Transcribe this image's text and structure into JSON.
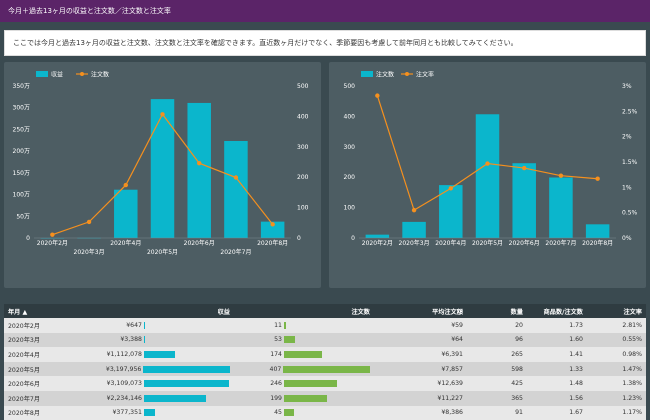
{
  "header": {
    "title": "今月＋過去13ヶ月の収益と注文数／注文数と注文率"
  },
  "intro": {
    "text": "ここでは今月と過去13ヶ月の収益と注文数、注文数と注文率を確認できます。直近数ヶ月だけでなく、季節要因も考慮して前年同月とも比較してみてください。"
  },
  "colors": {
    "revenue": "#0bb6cc",
    "line": "#f5901e",
    "orders_bar": "#7ab648"
  },
  "chart_data": [
    {
      "type": "bar",
      "legend": [
        "収益",
        "注文数"
      ],
      "categories": [
        "2020年2月",
        "2020年3月",
        "2020年4月",
        "2020年5月",
        "2020年6月",
        "2020年7月",
        "2020年8月"
      ],
      "series": [
        {
          "name": "収益",
          "values": [
            0.06,
            0.34,
            111.2,
            319.8,
            311.0,
            223.4,
            37.7
          ],
          "axis": "left"
        },
        {
          "name": "注文数",
          "values": [
            11,
            53,
            174,
            407,
            246,
            199,
            45
          ],
          "axis": "right",
          "line": true
        }
      ],
      "left_ticks": [
        "0",
        "50万",
        "100万",
        "150万",
        "200万",
        "250万",
        "300万",
        "350万"
      ],
      "right_ticks": [
        "0",
        "100",
        "200",
        "300",
        "400",
        "500"
      ],
      "ylim_left": [
        0,
        350
      ],
      "ylim_right": [
        0,
        500
      ]
    },
    {
      "type": "bar",
      "legend": [
        "注文数",
        "注文率"
      ],
      "categories": [
        "2020年2月",
        "2020年3月",
        "2020年4月",
        "2020年5月",
        "2020年6月",
        "2020年7月",
        "2020年8月"
      ],
      "series": [
        {
          "name": "注文数",
          "values": [
            11,
            53,
            174,
            407,
            246,
            199,
            45
          ],
          "axis": "left"
        },
        {
          "name": "注文率",
          "values": [
            2.81,
            0.55,
            0.98,
            1.47,
            1.38,
            1.23,
            1.17
          ],
          "axis": "right",
          "line": true
        }
      ],
      "left_ticks": [
        "0",
        "100",
        "200",
        "300",
        "400",
        "500"
      ],
      "right_ticks": [
        "0%",
        "0.5%",
        "1%",
        "1.5%",
        "2%",
        "2.5%",
        "3%"
      ],
      "ylim_left": [
        0,
        500
      ],
      "ylim_right": [
        0,
        3
      ]
    }
  ],
  "table": {
    "headers": [
      "年月 ▲",
      "収益",
      "注文数",
      "平均注文額",
      "数量",
      "商品数/注文数",
      "注文率"
    ],
    "rows": [
      {
        "month": "2020年2月",
        "revenue": "¥647",
        "rev_frac": 0.0,
        "orders": "11",
        "ord_frac": 0.02,
        "avg": "¥59",
        "qty": "20",
        "items": "1.73",
        "rate": "2.81%"
      },
      {
        "month": "2020年3月",
        "revenue": "¥3,388",
        "rev_frac": 0.001,
        "orders": "53",
        "ord_frac": 0.13,
        "avg": "¥64",
        "qty": "96",
        "items": "1.60",
        "rate": "0.55%"
      },
      {
        "month": "2020年4月",
        "revenue": "¥1,112,078",
        "rev_frac": 0.35,
        "orders": "174",
        "ord_frac": 0.43,
        "avg": "¥6,391",
        "qty": "265",
        "items": "1.41",
        "rate": "0.98%"
      },
      {
        "month": "2020年5月",
        "revenue": "¥3,197,956",
        "rev_frac": 1.0,
        "orders": "407",
        "ord_frac": 1.0,
        "avg": "¥7,857",
        "qty": "598",
        "items": "1.33",
        "rate": "1.47%"
      },
      {
        "month": "2020年6月",
        "revenue": "¥3,109,073",
        "rev_frac": 0.97,
        "orders": "246",
        "ord_frac": 0.6,
        "avg": "¥12,639",
        "qty": "425",
        "items": "1.48",
        "rate": "1.38%"
      },
      {
        "month": "2020年7月",
        "revenue": "¥2,234,146",
        "rev_frac": 0.7,
        "orders": "199",
        "ord_frac": 0.49,
        "avg": "¥11,227",
        "qty": "365",
        "items": "1.56",
        "rate": "1.23%"
      },
      {
        "month": "2020年8月",
        "revenue": "¥377,351",
        "rev_frac": 0.12,
        "orders": "45",
        "ord_frac": 0.11,
        "avg": "¥8,386",
        "qty": "91",
        "items": "1.67",
        "rate": "1.17%"
      }
    ]
  }
}
